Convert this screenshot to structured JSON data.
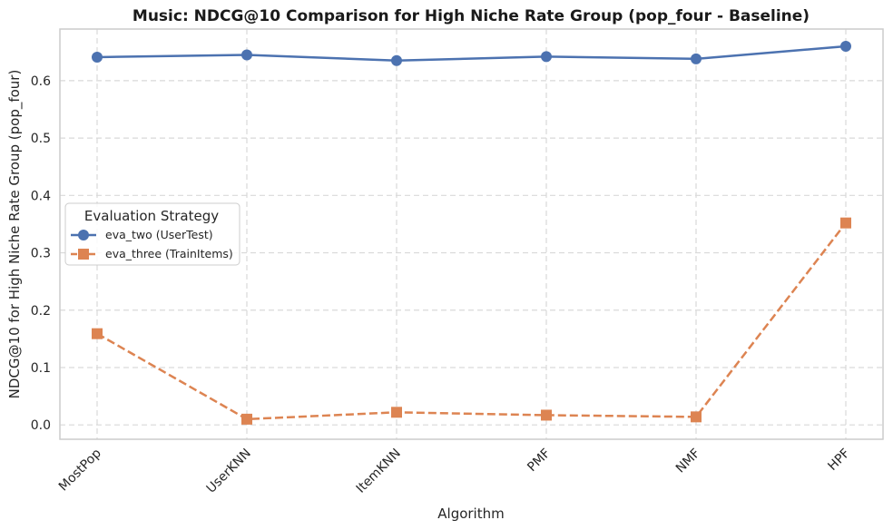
{
  "chart_data": {
    "type": "line",
    "title": "Music: NDCG@10 Comparison for High Niche Rate Group (pop_four - Baseline)",
    "xlabel": "Algorithm",
    "ylabel": "NDCG@10 for High Niche Rate Group (pop_four)",
    "categories": [
      "MostPop",
      "UserKNN",
      "ItemKNN",
      "PMF",
      "NMF",
      "HPF"
    ],
    "ylim": [
      -0.025,
      0.69
    ],
    "yticks": [
      0.0,
      0.1,
      0.2,
      0.3,
      0.4,
      0.5,
      0.6
    ],
    "ytick_labels": [
      "0.0",
      "0.1",
      "0.2",
      "0.3",
      "0.4",
      "0.5",
      "0.6"
    ],
    "grid": true,
    "legend": {
      "title": "Evaluation Strategy",
      "position": "center-left"
    },
    "series": [
      {
        "name": "eva_two (UserTest)",
        "values": [
          0.641,
          0.645,
          0.635,
          0.642,
          0.638,
          0.66
        ],
        "color": "#4c72b0",
        "marker": "circle",
        "line_style": "solid"
      },
      {
        "name": "eva_three (TrainItems)",
        "values": [
          0.159,
          0.01,
          0.022,
          0.017,
          0.014,
          0.352
        ],
        "color": "#dd8452",
        "marker": "square",
        "line_style": "dashed"
      }
    ]
  }
}
